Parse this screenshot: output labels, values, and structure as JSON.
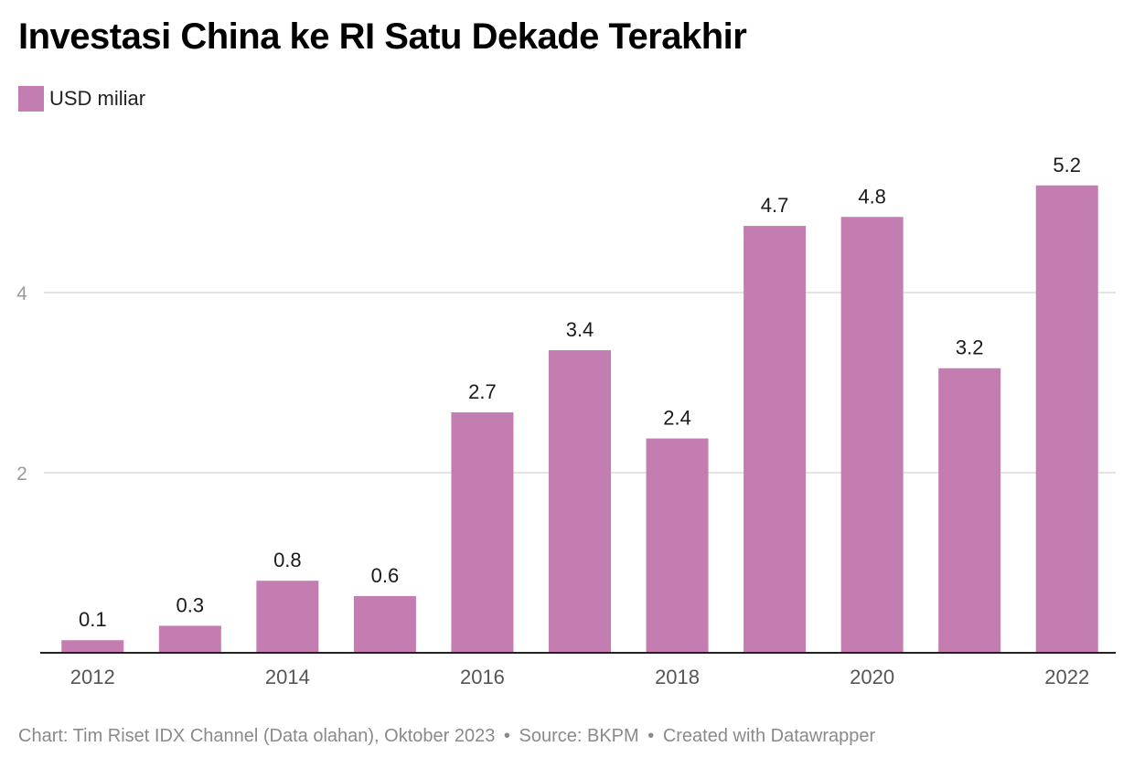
{
  "title": "Investasi China ke RI Satu Dekade Terakhir",
  "legend": {
    "label": "USD miliar",
    "color": "#c47db0"
  },
  "footer": {
    "credit": "Chart: Tim Riset IDX Channel (Data olahan), Oktober 2023",
    "separator": "•",
    "source": "Source: BKPM",
    "tool": "Created with Datawrapper"
  },
  "chart_data": {
    "type": "bar",
    "title": "Investasi China ke RI Satu Dekade Terakhir",
    "xlabel": "",
    "ylabel": "",
    "categories": [
      "2012",
      "2013",
      "2014",
      "2015",
      "2016",
      "2017",
      "2018",
      "2019",
      "2020",
      "2021",
      "2022"
    ],
    "series": [
      {
        "name": "USD miliar",
        "values": [
          0.14,
          0.3,
          0.8,
          0.63,
          2.67,
          3.36,
          2.38,
          4.74,
          4.84,
          3.16,
          5.19
        ],
        "labels": [
          "0.1",
          "0.3",
          "0.8",
          "0.6",
          "2.7",
          "3.4",
          "2.4",
          "4.7",
          "4.8",
          "3.2",
          "5.2"
        ],
        "color": "#c47db0"
      }
    ],
    "x_tick_labels": [
      "2012",
      "2014",
      "2016",
      "2018",
      "2020",
      "2022"
    ],
    "y_ticks": [
      2,
      4
    ],
    "ylim": [
      0,
      5.9
    ],
    "grid": true,
    "legend_position": "top-left"
  }
}
